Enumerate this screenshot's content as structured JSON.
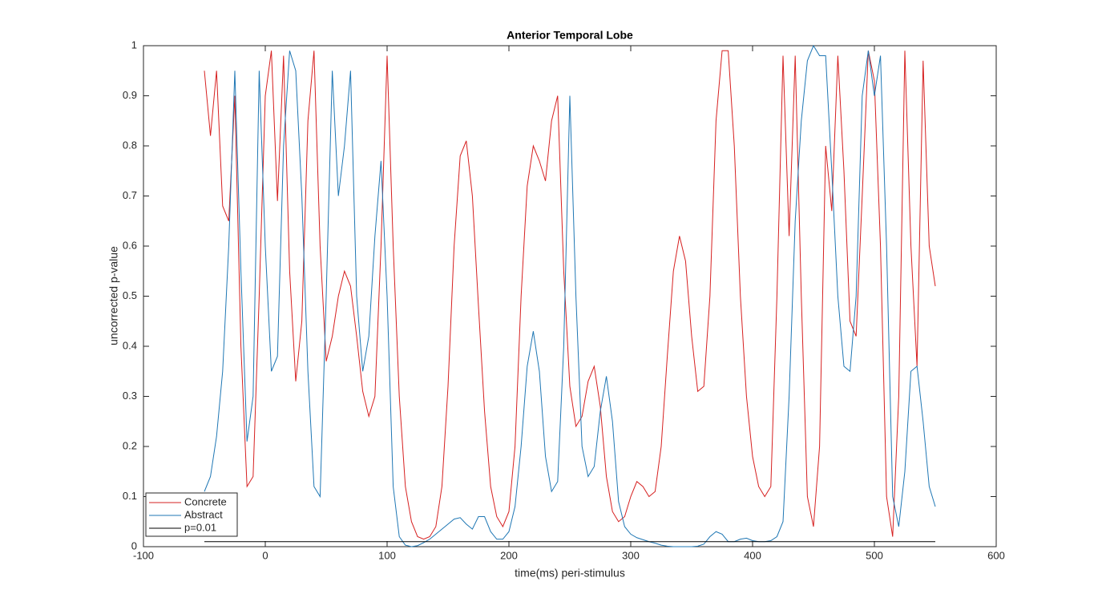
{
  "chart_data": {
    "type": "line",
    "title": "Anterior Temporal Lobe",
    "x_label": "time(ms) peri-stimulus",
    "y_label": "uncorrected p-value",
    "x": [
      -50,
      -45,
      -40,
      -35,
      -30,
      -25,
      -20,
      -15,
      -10,
      -5,
      0,
      5,
      10,
      15,
      20,
      25,
      30,
      35,
      40,
      45,
      50,
      55,
      60,
      65,
      70,
      75,
      80,
      85,
      90,
      95,
      100,
      105,
      110,
      115,
      120,
      125,
      130,
      135,
      140,
      145,
      150,
      155,
      160,
      165,
      170,
      175,
      180,
      185,
      190,
      195,
      200,
      205,
      210,
      215,
      220,
      225,
      230,
      235,
      240,
      245,
      250,
      255,
      260,
      265,
      270,
      275,
      280,
      285,
      290,
      295,
      300,
      305,
      310,
      315,
      320,
      325,
      330,
      335,
      340,
      345,
      350,
      355,
      360,
      365,
      370,
      375,
      380,
      385,
      390,
      395,
      400,
      405,
      410,
      415,
      420,
      425,
      430,
      435,
      440,
      445,
      450,
      455,
      460,
      465,
      470,
      475,
      480,
      485,
      490,
      495,
      500,
      505,
      510,
      515,
      520,
      525,
      530,
      535,
      540,
      545,
      550
    ],
    "series": [
      {
        "name": "Concrete",
        "color": "#d62020",
        "values": [
          0.95,
          0.82,
          0.95,
          0.68,
          0.65,
          0.9,
          0.4,
          0.12,
          0.14,
          0.5,
          0.9,
          0.99,
          0.69,
          0.98,
          0.55,
          0.33,
          0.45,
          0.85,
          0.99,
          0.6,
          0.37,
          0.42,
          0.5,
          0.55,
          0.52,
          0.42,
          0.31,
          0.26,
          0.3,
          0.6,
          0.98,
          0.6,
          0.3,
          0.12,
          0.05,
          0.02,
          0.015,
          0.02,
          0.04,
          0.12,
          0.32,
          0.6,
          0.78,
          0.81,
          0.7,
          0.48,
          0.27,
          0.12,
          0.06,
          0.04,
          0.07,
          0.2,
          0.5,
          0.72,
          0.8,
          0.77,
          0.73,
          0.85,
          0.9,
          0.55,
          0.32,
          0.24,
          0.26,
          0.33,
          0.36,
          0.28,
          0.14,
          0.07,
          0.05,
          0.06,
          0.1,
          0.13,
          0.12,
          0.1,
          0.11,
          0.2,
          0.38,
          0.55,
          0.62,
          0.57,
          0.42,
          0.31,
          0.32,
          0.5,
          0.85,
          0.99,
          0.99,
          0.8,
          0.5,
          0.3,
          0.18,
          0.12,
          0.1,
          0.12,
          0.5,
          0.98,
          0.62,
          0.98,
          0.5,
          0.1,
          0.04,
          0.2,
          0.8,
          0.67,
          0.98,
          0.75,
          0.45,
          0.42,
          0.7,
          0.99,
          0.93,
          0.6,
          0.1,
          0.02,
          0.3,
          0.99,
          0.6,
          0.36,
          0.97,
          0.6,
          0.52
        ]
      },
      {
        "name": "Abstract",
        "color": "#1f77b4",
        "values": [
          0.11,
          0.14,
          0.22,
          0.35,
          0.6,
          0.95,
          0.55,
          0.21,
          0.3,
          0.95,
          0.6,
          0.35,
          0.38,
          0.8,
          0.99,
          0.95,
          0.7,
          0.35,
          0.12,
          0.1,
          0.5,
          0.95,
          0.7,
          0.8,
          0.95,
          0.5,
          0.35,
          0.42,
          0.62,
          0.77,
          0.5,
          0.12,
          0.02,
          0.003,
          0,
          0.002,
          0.008,
          0.015,
          0.025,
          0.035,
          0.045,
          0.055,
          0.058,
          0.045,
          0.035,
          0.06,
          0.06,
          0.03,
          0.015,
          0.015,
          0.03,
          0.08,
          0.2,
          0.36,
          0.43,
          0.35,
          0.18,
          0.11,
          0.13,
          0.4,
          0.9,
          0.5,
          0.2,
          0.14,
          0.16,
          0.27,
          0.34,
          0.25,
          0.09,
          0.04,
          0.025,
          0.018,
          0.014,
          0.01,
          0.007,
          0.003,
          0.001,
          0,
          0,
          0,
          0,
          0.001,
          0.005,
          0.02,
          0.03,
          0.025,
          0.01,
          0.01,
          0.015,
          0.017,
          0.012,
          0.01,
          0.01,
          0.012,
          0.02,
          0.05,
          0.3,
          0.65,
          0.85,
          0.97,
          1,
          0.98,
          0.98,
          0.75,
          0.5,
          0.36,
          0.35,
          0.5,
          0.9,
          0.99,
          0.9,
          0.98,
          0.6,
          0.1,
          0.04,
          0.15,
          0.35,
          0.36,
          0.25,
          0.12,
          0.08
        ]
      },
      {
        "name": "p=0.01",
        "color": "#000000",
        "x": [
          -50,
          550
        ],
        "values": [
          0.01,
          0.01
        ]
      }
    ],
    "xlim": [
      -100,
      600
    ],
    "xticks": [
      -100,
      0,
      100,
      200,
      300,
      400,
      500,
      600
    ],
    "ylim": [
      0,
      1
    ],
    "yticks": [
      0,
      0.1,
      0.2,
      0.3,
      0.4,
      0.5,
      0.6,
      0.7,
      0.8,
      0.9,
      1
    ],
    "grid": false,
    "legend": "lower left"
  }
}
